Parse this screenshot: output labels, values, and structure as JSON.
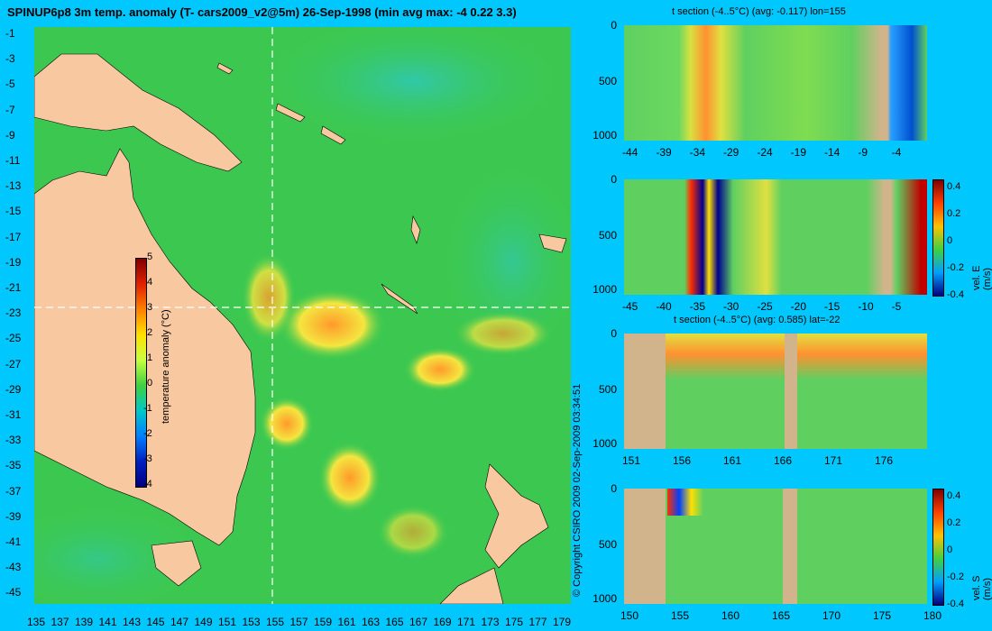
{
  "title": "SPINUP6p8 3m temp. anomaly (T- cars2009_v2@5m) 26-Sep-1998 (min avg max: -4 0.22 3.3)",
  "map": {
    "lat_ticks": [
      "-1",
      "-3",
      "-5",
      "-7",
      "-9",
      "-11",
      "-13",
      "-15",
      "-17",
      "-19",
      "-21",
      "-23",
      "-25",
      "-27",
      "-29",
      "-31",
      "-33",
      "-35",
      "-37",
      "-39",
      "-41",
      "-43",
      "-45"
    ],
    "lon_ticks": [
      "135",
      "137",
      "139",
      "141",
      "143",
      "145",
      "147",
      "149",
      "151",
      "153",
      "155",
      "157",
      "159",
      "161",
      "163",
      "165",
      "167",
      "169",
      "171",
      "173",
      "175",
      "177",
      "179"
    ],
    "colorbar": {
      "label": "temperature anomaly (°C)",
      "ticks": [
        "5",
        "4",
        "3",
        "2",
        "1",
        "0",
        "-1",
        "-2",
        "-3",
        "-4"
      ]
    },
    "copyright": "© Copyright CSIRO 2009   02-Sep-2009 03:34:51",
    "colors": {
      "land": "#f8c8a0",
      "ocean": "#3cc850",
      "background": "#00c8ff"
    }
  },
  "panels": [
    {
      "title": "t section (-4..5°C) (avg: -0.117) lon=155",
      "y_ticks": [
        "0",
        "500",
        "1000"
      ],
      "x_ticks": [
        "-44",
        "-39",
        "-34",
        "-29",
        "-24",
        "-19",
        "-14",
        "-9",
        "-4"
      ],
      "colorbar_label": "",
      "colorbar_ticks": []
    },
    {
      "title": "",
      "y_ticks": [
        "0",
        "500",
        "1000"
      ],
      "x_ticks": [
        "-45",
        "-40",
        "-35",
        "-30",
        "-25",
        "-20",
        "-15",
        "-10",
        "-5"
      ],
      "colorbar_label": "vel. E (m/s) lon=155",
      "colorbar_ticks": [
        "0.4",
        "0.2",
        "0",
        "-0.2",
        "-0.4"
      ]
    },
    {
      "title": "t section (-4..5°C) (avg: 0.585) lat=-22",
      "y_ticks": [
        "0",
        "500",
        "1000"
      ],
      "x_ticks": [
        "151",
        "156",
        "161",
        "166",
        "171",
        "176"
      ],
      "colorbar_label": "",
      "colorbar_ticks": []
    },
    {
      "title": "",
      "y_ticks": [
        "0",
        "500",
        "1000"
      ],
      "x_ticks": [
        "150",
        "155",
        "160",
        "165",
        "170",
        "175",
        "180"
      ],
      "colorbar_label": "vel. S (m/s) lat=-22",
      "colorbar_ticks": [
        "0.4",
        "0.2",
        "0",
        "-0.2",
        "-0.4"
      ]
    }
  ]
}
